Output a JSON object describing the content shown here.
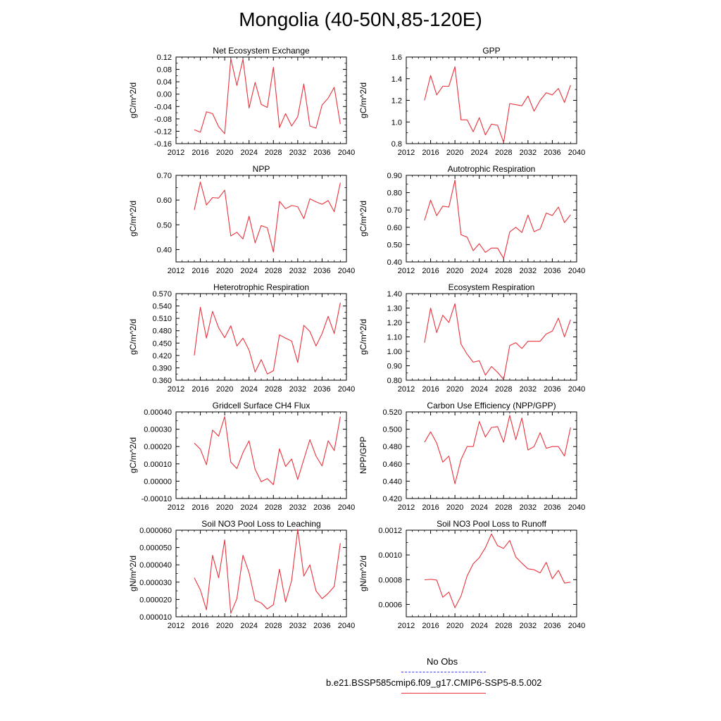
{
  "title": "Mongolia (40-50N,85-120E)",
  "legend": {
    "items": [
      {
        "label": "No Obs",
        "color": "#3a3aff",
        "dash": true
      },
      {
        "label": "b.e21.BSSP585cmip6.f09_g17.CMIP6-SSP5-8.5.002",
        "color": "#e8323c",
        "dash": false
      }
    ]
  },
  "chart_data": [
    {
      "type": "line",
      "title": "Net Ecosystem Exchange",
      "ylabel": "gC/m^2/d",
      "xlim": [
        2012,
        2040
      ],
      "ylim": [
        -0.16,
        0.12
      ],
      "xticks": [
        "2012",
        "2016",
        "2020",
        "2024",
        "2028",
        "2032",
        "2036",
        "2040"
      ],
      "yticks": [
        "-0.16",
        "-0.12",
        "-0.08",
        "-0.04",
        "0.00",
        "0.04",
        "0.08",
        "0.12"
      ],
      "series": [
        {
          "color": "#e8323c",
          "x": [
            2015,
            2016,
            2017,
            2018,
            2019,
            2020,
            2021,
            2022,
            2023,
            2024,
            2025,
            2026,
            2027,
            2028,
            2029,
            2030,
            2031,
            2032,
            2033,
            2034,
            2035,
            2036,
            2037,
            2038,
            2039
          ],
          "values": [
            -0.115,
            -0.123,
            -0.057,
            -0.063,
            -0.105,
            -0.128,
            0.115,
            0.028,
            0.113,
            -0.045,
            0.038,
            -0.033,
            -0.043,
            0.087,
            -0.108,
            -0.063,
            -0.103,
            -0.073,
            0.033,
            -0.103,
            -0.11,
            -0.035,
            -0.013,
            0.022,
            -0.097
          ]
        }
      ]
    },
    {
      "type": "line",
      "title": "GPP",
      "ylabel": "gC/m^2/d",
      "xlim": [
        2012,
        2040
      ],
      "ylim": [
        0.8,
        1.6
      ],
      "xticks": [
        "2012",
        "2016",
        "2020",
        "2024",
        "2028",
        "2032",
        "2036",
        "2040"
      ],
      "yticks": [
        "0.8",
        "1.0",
        "1.2",
        "1.4",
        "1.6"
      ],
      "series": [
        {
          "color": "#e8323c",
          "x": [
            2015,
            2016,
            2017,
            2018,
            2019,
            2020,
            2021,
            2022,
            2023,
            2024,
            2025,
            2026,
            2027,
            2028,
            2029,
            2030,
            2031,
            2032,
            2033,
            2034,
            2035,
            2036,
            2037,
            2038,
            2039
          ],
          "values": [
            1.2,
            1.43,
            1.25,
            1.33,
            1.33,
            1.51,
            1.02,
            1.02,
            0.91,
            1.04,
            0.88,
            0.98,
            0.97,
            0.81,
            1.17,
            1.16,
            1.15,
            1.24,
            1.1,
            1.2,
            1.27,
            1.25,
            1.31,
            1.18,
            1.34
          ]
        }
      ]
    },
    {
      "type": "line",
      "title": "NPP",
      "ylabel": "gC/m^2/d",
      "xlim": [
        2012,
        2040
      ],
      "ylim": [
        0.35,
        0.7
      ],
      "xticks": [
        "2012",
        "2016",
        "2020",
        "2024",
        "2028",
        "2032",
        "2036",
        "2040"
      ],
      "yticks": [
        "0.40",
        "0.50",
        "0.60",
        "0.70"
      ],
      "series": [
        {
          "color": "#e8323c",
          "x": [
            2015,
            2016,
            2017,
            2018,
            2019,
            2020,
            2021,
            2022,
            2023,
            2024,
            2025,
            2026,
            2027,
            2028,
            2029,
            2030,
            2031,
            2032,
            2033,
            2034,
            2035,
            2036,
            2037,
            2038,
            2039
          ],
          "values": [
            0.56,
            0.673,
            0.58,
            0.61,
            0.608,
            0.64,
            0.455,
            0.47,
            0.443,
            0.535,
            0.427,
            0.497,
            0.488,
            0.39,
            0.595,
            0.565,
            0.578,
            0.573,
            0.525,
            0.605,
            0.593,
            0.583,
            0.598,
            0.553,
            0.67
          ]
        }
      ]
    },
    {
      "type": "line",
      "title": "Autotrophic Respiration",
      "ylabel": "gC/m^2/d",
      "xlim": [
        2012,
        2040
      ],
      "ylim": [
        0.4,
        0.9
      ],
      "xticks": [
        "2012",
        "2016",
        "2020",
        "2024",
        "2028",
        "2032",
        "2036",
        "2040"
      ],
      "yticks": [
        "0.40",
        "0.50",
        "0.60",
        "0.70",
        "0.80",
        "0.90"
      ],
      "series": [
        {
          "color": "#e8323c",
          "x": [
            2015,
            2016,
            2017,
            2018,
            2019,
            2020,
            2021,
            2022,
            2023,
            2024,
            2025,
            2026,
            2027,
            2028,
            2029,
            2030,
            2031,
            2032,
            2033,
            2034,
            2035,
            2036,
            2037,
            2038,
            2039
          ],
          "values": [
            0.64,
            0.757,
            0.667,
            0.722,
            0.717,
            0.872,
            0.557,
            0.543,
            0.465,
            0.505,
            0.455,
            0.48,
            0.48,
            0.42,
            0.573,
            0.6,
            0.57,
            0.67,
            0.575,
            0.59,
            0.682,
            0.668,
            0.717,
            0.627,
            0.672
          ]
        }
      ]
    },
    {
      "type": "line",
      "title": "Heterotrophic Respiration",
      "ylabel": "gC/m^2/d",
      "xlim": [
        2012,
        2040
      ],
      "ylim": [
        0.36,
        0.57
      ],
      "xticks": [
        "2012",
        "2016",
        "2020",
        "2024",
        "2028",
        "2032",
        "2036",
        "2040"
      ],
      "yticks": [
        "0.360",
        "0.390",
        "0.420",
        "0.450",
        "0.480",
        "0.510",
        "0.540",
        "0.570"
      ],
      "series": [
        {
          "color": "#e8323c",
          "x": [
            2015,
            2016,
            2017,
            2018,
            2019,
            2020,
            2021,
            2022,
            2023,
            2024,
            2025,
            2026,
            2027,
            2028,
            2029,
            2030,
            2031,
            2032,
            2033,
            2034,
            2035,
            2036,
            2037,
            2038,
            2039
          ],
          "values": [
            0.42,
            0.537,
            0.462,
            0.527,
            0.487,
            0.463,
            0.492,
            0.443,
            0.462,
            0.433,
            0.38,
            0.41,
            0.375,
            0.383,
            0.47,
            0.462,
            0.455,
            0.403,
            0.493,
            0.478,
            0.443,
            0.473,
            0.515,
            0.473,
            0.548
          ]
        }
      ]
    },
    {
      "type": "line",
      "title": "Ecosystem Respiration",
      "ylabel": "gC/m^2/d",
      "xlim": [
        2012,
        2040
      ],
      "ylim": [
        0.8,
        1.4
      ],
      "xticks": [
        "2012",
        "2016",
        "2020",
        "2024",
        "2028",
        "2032",
        "2036",
        "2040"
      ],
      "yticks": [
        "0.80",
        "0.90",
        "1.00",
        "1.10",
        "1.20",
        "1.30",
        "1.40"
      ],
      "series": [
        {
          "color": "#e8323c",
          "x": [
            2015,
            2016,
            2017,
            2018,
            2019,
            2020,
            2021,
            2022,
            2023,
            2024,
            2025,
            2026,
            2027,
            2028,
            2029,
            2030,
            2031,
            2032,
            2033,
            2034,
            2035,
            2036,
            2037,
            2038,
            2039
          ],
          "values": [
            1.06,
            1.3,
            1.13,
            1.25,
            1.2,
            1.33,
            1.05,
            0.98,
            0.925,
            0.935,
            0.835,
            0.895,
            0.855,
            0.805,
            1.04,
            1.06,
            1.02,
            1.07,
            1.07,
            1.07,
            1.12,
            1.14,
            1.23,
            1.1,
            1.22
          ]
        }
      ]
    },
    {
      "type": "line",
      "title": "Gridcell Surface CH4 Flux",
      "ylabel": "gC/m^2/d",
      "xlim": [
        2012,
        2040
      ],
      "ylim": [
        -0.0001,
        0.0004
      ],
      "xticks": [
        "2012",
        "2016",
        "2020",
        "2024",
        "2028",
        "2032",
        "2036",
        "2040"
      ],
      "yticks": [
        "-0.00010",
        "0.00000",
        "0.00010",
        "0.00020",
        "0.00030",
        "0.00040"
      ],
      "series": [
        {
          "color": "#e8323c",
          "x": [
            2015,
            2016,
            2017,
            2018,
            2019,
            2020,
            2021,
            2022,
            2023,
            2024,
            2025,
            2026,
            2027,
            2028,
            2029,
            2030,
            2031,
            2032,
            2033,
            2034,
            2035,
            2036,
            2037,
            2038,
            2039
          ],
          "values": [
            0.00022,
            0.000185,
            9.5e-05,
            0.000295,
            0.00026,
            0.000373,
            0.00011,
            7.3e-05,
            0.000165,
            0.000233,
            6.8e-05,
            -3e-06,
            1.5e-05,
            -2e-05,
            0.000187,
            8.5e-05,
            0.000128,
            1e-05,
            0.000125,
            0.00024,
            0.000145,
            8.8e-05,
            0.000233,
            0.000177,
            0.000373
          ]
        }
      ]
    },
    {
      "type": "line",
      "title": "Carbon Use Efficiency (NPP/GPP)",
      "ylabel": "NPP/GPP",
      "xlim": [
        2012,
        2040
      ],
      "ylim": [
        0.42,
        0.52
      ],
      "xticks": [
        "2012",
        "2016",
        "2020",
        "2024",
        "2028",
        "2032",
        "2036",
        "2040"
      ],
      "yticks": [
        "0.420",
        "0.440",
        "0.460",
        "0.480",
        "0.500",
        "0.520"
      ],
      "series": [
        {
          "color": "#e8323c",
          "x": [
            2015,
            2016,
            2017,
            2018,
            2019,
            2020,
            2021,
            2022,
            2023,
            2024,
            2025,
            2026,
            2027,
            2028,
            2029,
            2030,
            2031,
            2032,
            2033,
            2034,
            2035,
            2036,
            2037,
            2038,
            2039
          ],
          "values": [
            0.485,
            0.497,
            0.484,
            0.462,
            0.469,
            0.437,
            0.465,
            0.48,
            0.48,
            0.509,
            0.491,
            0.502,
            0.503,
            0.485,
            0.516,
            0.488,
            0.513,
            0.476,
            0.48,
            0.496,
            0.478,
            0.48,
            0.48,
            0.469,
            0.502
          ]
        }
      ]
    },
    {
      "type": "line",
      "title": "Soil NO3 Pool Loss to Leaching",
      "ylabel": "gN/m^2/d",
      "xlim": [
        2012,
        2040
      ],
      "ylim": [
        1e-05,
        6e-05
      ],
      "xticks": [
        "2012",
        "2016",
        "2020",
        "2024",
        "2028",
        "2032",
        "2036",
        "2040"
      ],
      "yticks": [
        "0.000010",
        "0.000020",
        "0.000030",
        "0.000040",
        "0.000050",
        "0.000060"
      ],
      "series": [
        {
          "color": "#e8323c",
          "x": [
            2015,
            2016,
            2017,
            2018,
            2019,
            2020,
            2021,
            2022,
            2023,
            2024,
            2025,
            2026,
            2027,
            2028,
            2029,
            2030,
            2031,
            2032,
            2033,
            2034,
            2035,
            2036,
            2037,
            2038,
            2039
          ],
          "values": [
            3.25e-05,
            2.55e-05,
            1.4e-05,
            4.55e-05,
            3.25e-05,
            5.45e-05,
            1.2e-05,
            2.05e-05,
            4.55e-05,
            3.55e-05,
            1.95e-05,
            1.8e-05,
            1.45e-05,
            1.7e-05,
            3.75e-05,
            1.85e-05,
            3.1e-05,
            6.05e-05,
            3.35e-05,
            4e-05,
            2.5e-05,
            2.05e-05,
            2.35e-05,
            2.75e-05,
            5.25e-05
          ]
        }
      ]
    },
    {
      "type": "line",
      "title": "Soil NO3 Pool Loss to Runoff",
      "ylabel": "gN/m^2/d",
      "xlim": [
        2012,
        2040
      ],
      "ylim": [
        0.0005,
        0.0012
      ],
      "xticks": [
        "2012",
        "2016",
        "2020",
        "2024",
        "2028",
        "2032",
        "2036",
        "2040"
      ],
      "yticks": [
        "0.0006",
        "0.0008",
        "0.0010",
        "0.0012"
      ],
      "series": [
        {
          "color": "#e8323c",
          "x": [
            2015,
            2016,
            2017,
            2018,
            2019,
            2020,
            2021,
            2022,
            2023,
            2024,
            2025,
            2026,
            2027,
            2028,
            2029,
            2030,
            2031,
            2032,
            2033,
            2034,
            2035,
            2036,
            2037,
            2038,
            2039
          ],
          "values": [
            0.000798,
            0.000803,
            0.000797,
            0.000658,
            0.0007,
            0.000573,
            0.000668,
            0.00083,
            0.000928,
            0.000978,
            0.001058,
            0.00117,
            0.001075,
            0.001053,
            0.001117,
            0.000983,
            0.000933,
            0.000888,
            0.00088,
            0.000855,
            0.00094,
            0.000808,
            0.000875,
            0.000773,
            0.00078
          ]
        }
      ]
    }
  ]
}
